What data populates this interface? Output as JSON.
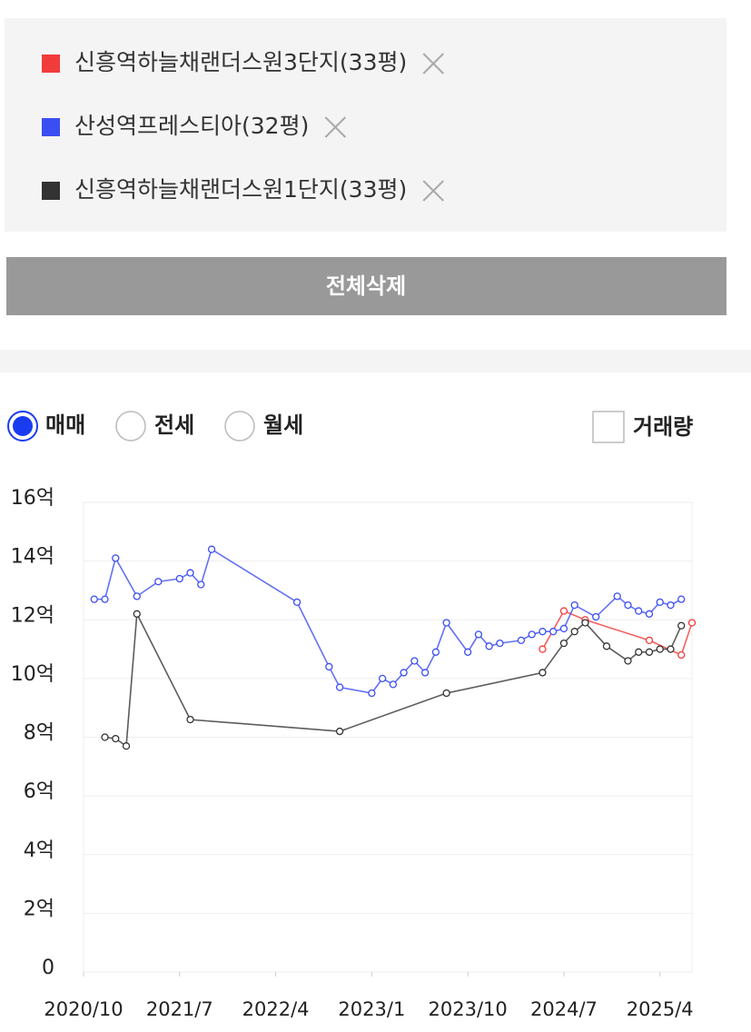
{
  "delete_all_button": "전체삭제",
  "tabs": [
    "매매",
    "전세",
    "월세"
  ],
  "volume_checkbox": "거래량",
  "chart_data": {
    "type": "line",
    "series": [
      {
        "name": "신흥역하늘채랜더스원3단지(33평)",
        "color": "#f23b3b",
        "x": [
          "2024/5",
          "2024/7",
          "2024/9",
          "2025/3",
          "2025/6",
          "2025/7"
        ],
        "values": [
          11.0,
          12.3,
          12.0,
          11.3,
          10.8,
          11.9
        ]
      },
      {
        "name": "산성역프레스티아(32평)",
        "color": "#3b4ef2",
        "x": [
          "2020/11",
          "2020/12",
          "2021/1",
          "2021/3",
          "2021/5",
          "2021/7",
          "2021/8",
          "2021/9",
          "2021/10",
          "2022/6",
          "2022/9",
          "2022/10",
          "2023/1",
          "2023/2",
          "2023/3",
          "2023/4",
          "2023/5",
          "2023/6",
          "2023/7",
          "2023/8",
          "2023/10",
          "2023/11",
          "2023/12",
          "2024/1",
          "2024/3",
          "2024/4",
          "2024/5",
          "2024/6",
          "2024/7",
          "2024/8",
          "2024/10",
          "2024/12",
          "2025/1",
          "2025/2",
          "2025/3",
          "2025/4",
          "2025/5",
          "2025/6"
        ],
        "values": [
          12.7,
          12.7,
          14.1,
          12.8,
          13.3,
          13.4,
          13.6,
          13.2,
          14.4,
          12.6,
          10.4,
          9.7,
          9.5,
          10.0,
          9.8,
          10.2,
          10.6,
          10.2,
          10.9,
          11.9,
          10.9,
          11.5,
          11.1,
          11.2,
          11.3,
          11.5,
          11.6,
          11.6,
          11.7,
          12.5,
          12.1,
          12.8,
          12.5,
          12.3,
          12.2,
          12.6,
          12.5,
          12.7
        ]
      },
      {
        "name": "신흥역하늘채랜더스원1단지(33평)",
        "color": "#333333",
        "x": [
          "2020/12",
          "2021/1",
          "2021/2",
          "2021/3",
          "2021/8",
          "2022/10",
          "2023/8",
          "2024/5",
          "2024/7",
          "2024/8",
          "2024/9",
          "2024/11",
          "2025/1",
          "2025/2",
          "2025/3",
          "2025/4",
          "2025/5",
          "2025/6"
        ],
        "values": [
          8.0,
          7.95,
          7.7,
          12.2,
          8.6,
          8.2,
          9.5,
          10.2,
          11.2,
          11.6,
          11.9,
          11.1,
          10.6,
          10.9,
          10.9,
          11.0,
          11.0,
          11.8
        ]
      }
    ],
    "xlim": [
      "2020/10",
      "2025/7"
    ],
    "xticks": [
      "2020/10",
      "2021/7",
      "2022/4",
      "2023/1",
      "2023/10",
      "2024/7",
      "2025/4"
    ],
    "ylim": [
      0,
      16
    ],
    "yticks": [
      0,
      {
        "value": 2,
        "label": "2억"
      },
      {
        "value": 4,
        "label": "4억"
      },
      {
        "value": 6,
        "label": "6억"
      },
      {
        "value": 8,
        "label": "8억"
      },
      {
        "value": 10,
        "label": "10억"
      },
      {
        "value": 12,
        "label": "12억"
      },
      {
        "value": 14,
        "label": "14억"
      },
      {
        "value": 16,
        "label": "16억"
      }
    ],
    "grid": true
  }
}
